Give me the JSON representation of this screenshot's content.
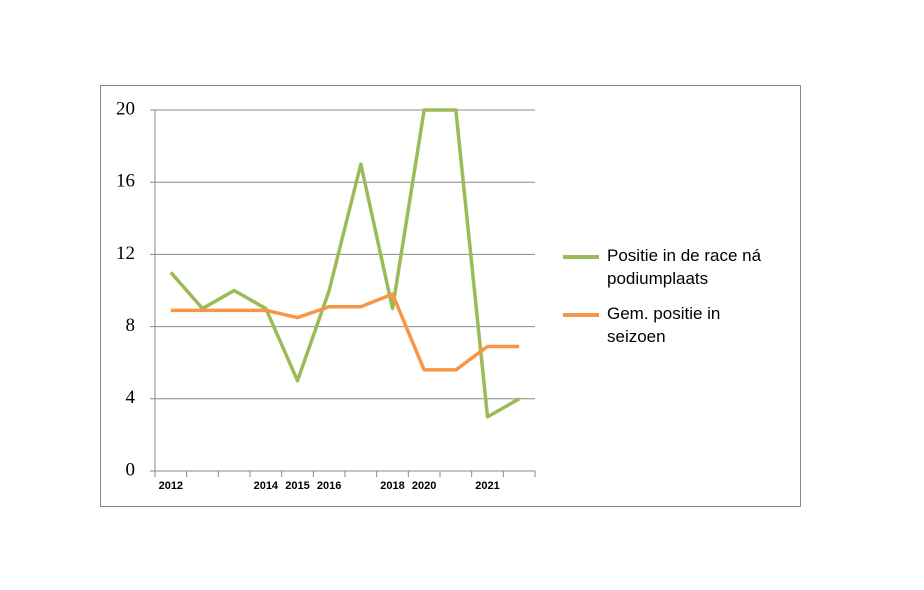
{
  "chart_data": {
    "type": "line",
    "categories": [
      "2012",
      null,
      null,
      "2014",
      "2015",
      "2016",
      null,
      "2018",
      "2020",
      null,
      "2021",
      null
    ],
    "series": [
      {
        "name": "Positie in de race ná podiumplaats",
        "color": "#9bbb59",
        "values": [
          11,
          9,
          10,
          9,
          5,
          10,
          17,
          9,
          20,
          20,
          3,
          4
        ]
      },
      {
        "name": "Gem. positie in seizoen",
        "color": "#f79646",
        "values": [
          8.9,
          8.9,
          8.9,
          8.9,
          8.5,
          9.1,
          9.1,
          9.8,
          5.6,
          5.6,
          6.9,
          6.9
        ]
      }
    ],
    "ylim": [
      0,
      20
    ],
    "yticks": [
      0,
      4,
      8,
      12,
      16,
      20
    ],
    "grid": true
  }
}
